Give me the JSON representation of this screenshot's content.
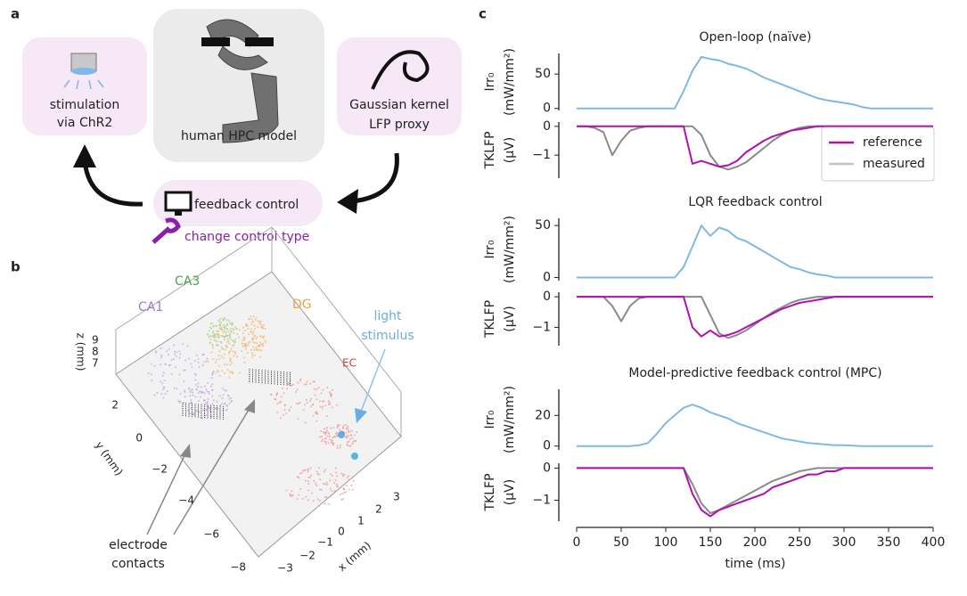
{
  "panel_a": {
    "label": "a",
    "stimulation": [
      "stimulation",
      "via ChR2"
    ],
    "model": "human HPC model",
    "proxy": [
      "Gaussian kernel",
      "LFP proxy"
    ],
    "feedback": "feedback control",
    "change": "change control type"
  },
  "panel_b": {
    "label": "b",
    "regions": [
      "CA1",
      "CA3",
      "DG",
      "EC"
    ],
    "light": [
      "light",
      "stimulus"
    ],
    "electrode": [
      "electrode",
      "contacts"
    ],
    "z_label": "z (mm)",
    "y_label": "y (mm)",
    "x_label": "x (mm)",
    "z_ticks": [
      "9",
      "8",
      "7"
    ],
    "y_ticks": [
      "2",
      "0",
      "−2",
      "−4",
      "−6",
      "−8"
    ],
    "x_ticks": [
      "−3",
      "−2",
      "−1",
      "0",
      "1",
      "2",
      "3"
    ]
  },
  "panel_c": {
    "label": "c"
  },
  "chart_data": [
    {
      "type": "line",
      "title": "Open-loop (naïve)",
      "y_label": [
        "Irr₀",
        "(mW/mm²)"
      ],
      "x": [
        0,
        10,
        20,
        30,
        40,
        50,
        60,
        70,
        80,
        90,
        100,
        110,
        120,
        130,
        140,
        150,
        160,
        170,
        180,
        190,
        200,
        210,
        220,
        230,
        240,
        250,
        260,
        270,
        280,
        290,
        300,
        310,
        320,
        330,
        340,
        350,
        360,
        370,
        380,
        390,
        400
      ],
      "xlim": [
        -2,
        403
      ],
      "ylim": [
        -3,
        80
      ],
      "yticks": [
        0,
        50
      ],
      "series": [
        {
          "color": "#7fb8e8",
          "values": [
            0,
            0,
            0,
            0,
            0,
            0,
            0,
            0,
            0,
            0,
            0,
            0,
            25,
            55,
            75,
            72,
            70,
            65,
            62,
            58,
            52,
            45,
            40,
            35,
            30,
            25,
            20,
            15,
            12,
            10,
            8,
            6,
            2,
            0,
            0,
            0,
            0,
            0,
            0,
            0,
            0
          ]
        }
      ]
    },
    {
      "type": "line",
      "y_label": [
        "TKLFP",
        "(μV)"
      ],
      "legend": "upper right",
      "x": [
        0,
        10,
        20,
        30,
        40,
        50,
        60,
        70,
        80,
        90,
        100,
        110,
        120,
        130,
        140,
        150,
        160,
        170,
        180,
        190,
        200,
        210,
        220,
        230,
        240,
        250,
        260,
        270,
        280,
        290,
        300,
        310,
        320,
        330,
        340,
        350,
        360,
        370,
        380,
        390,
        400
      ],
      "xlim": [
        -2,
        403
      ],
      "ylim": [
        -1.8,
        0.15
      ],
      "yticks": [
        {
          "value": -1,
          "label": "−1"
        },
        0
      ],
      "series": [
        {
          "name": "measured",
          "color": "#8a8a8a",
          "values": [
            0,
            0,
            -0.05,
            -0.2,
            -1.0,
            -0.5,
            -0.15,
            -0.05,
            0,
            0,
            0,
            0,
            0,
            0,
            -0.3,
            -1.0,
            -1.4,
            -1.5,
            -1.4,
            -1.25,
            -1.0,
            -0.75,
            -0.5,
            -0.3,
            -0.15,
            -0.05,
            0,
            0,
            0,
            0,
            0,
            0,
            0,
            0,
            0,
            0,
            0,
            0,
            0,
            0,
            0
          ]
        },
        {
          "name": "reference",
          "color": "#b010b0",
          "values": [
            0,
            0,
            0,
            0,
            0,
            0,
            0,
            0,
            0,
            0,
            0,
            0,
            0,
            -1.3,
            -1.2,
            -1.3,
            -1.4,
            -1.35,
            -1.2,
            -0.9,
            -0.7,
            -0.5,
            -0.35,
            -0.25,
            -0.15,
            -0.1,
            -0.05,
            0,
            0,
            0,
            0,
            0,
            0,
            0,
            0,
            0,
            0,
            0,
            0,
            0,
            0
          ]
        }
      ]
    },
    {
      "type": "line",
      "title": "LQR feedback control",
      "y_label": [
        "Irr₀",
        "(mW/mm²)"
      ],
      "x": [
        0,
        10,
        20,
        30,
        40,
        50,
        60,
        70,
        80,
        90,
        100,
        110,
        120,
        130,
        140,
        150,
        160,
        170,
        180,
        190,
        200,
        210,
        220,
        230,
        240,
        250,
        260,
        270,
        280,
        290,
        300,
        310,
        320,
        330,
        340,
        350,
        360,
        370,
        380,
        390,
        400
      ],
      "xlim": [
        -2,
        403
      ],
      "ylim": [
        -3,
        57
      ],
      "yticks": [
        0,
        50
      ],
      "series": [
        {
          "color": "#7fb8e8",
          "values": [
            0,
            0,
            0,
            0,
            0,
            0,
            0,
            0,
            0,
            0,
            0,
            0,
            10,
            30,
            50,
            40,
            48,
            45,
            38,
            35,
            30,
            25,
            20,
            15,
            10,
            8,
            5,
            3,
            2,
            0,
            0,
            0,
            0,
            0,
            0,
            0,
            0,
            0,
            0,
            0,
            0
          ]
        }
      ]
    },
    {
      "type": "line",
      "y_label": [
        "TKLFP",
        "(μV)"
      ],
      "x": [
        0,
        10,
        20,
        30,
        40,
        50,
        60,
        70,
        80,
        90,
        100,
        110,
        120,
        130,
        140,
        150,
        160,
        170,
        180,
        190,
        200,
        210,
        220,
        230,
        240,
        250,
        260,
        270,
        280,
        290,
        300,
        310,
        320,
        330,
        340,
        350,
        360,
        370,
        380,
        390,
        400
      ],
      "xlim": [
        -2,
        403
      ],
      "ylim": [
        -1.6,
        0.15
      ],
      "yticks": [
        {
          "value": -1,
          "label": "−1"
        },
        0
      ],
      "series": [
        {
          "color": "#8a8a8a",
          "values": [
            0,
            0,
            0,
            0,
            -0.3,
            -0.8,
            -0.3,
            -0.05,
            0,
            0,
            0,
            0,
            0,
            0,
            0,
            -0.6,
            -1.2,
            -1.35,
            -1.25,
            -1.1,
            -0.9,
            -0.7,
            -0.5,
            -0.35,
            -0.2,
            -0.1,
            -0.05,
            0,
            0,
            0,
            0,
            0,
            0,
            0,
            0,
            0,
            0,
            0,
            0,
            0,
            0
          ]
        },
        {
          "color": "#b010b0",
          "values": [
            0,
            0,
            0,
            0,
            0,
            0,
            0,
            0,
            0,
            0,
            0,
            0,
            0,
            -1.0,
            -1.3,
            -1.1,
            -1.3,
            -1.25,
            -1.15,
            -1.0,
            -0.85,
            -0.7,
            -0.55,
            -0.4,
            -0.3,
            -0.2,
            -0.15,
            -0.1,
            -0.05,
            0,
            0,
            0,
            0,
            0,
            0,
            0,
            0,
            0,
            0,
            0,
            0
          ]
        }
      ]
    },
    {
      "type": "line",
      "title": "Model-predictive feedback control (MPC)",
      "y_label": [
        "Irr₀",
        "(mW/mm²)"
      ],
      "x": [
        0,
        10,
        20,
        30,
        40,
        50,
        60,
        70,
        80,
        90,
        100,
        110,
        120,
        130,
        140,
        150,
        160,
        170,
        180,
        190,
        200,
        210,
        220,
        230,
        240,
        250,
        260,
        270,
        280,
        290,
        300,
        310,
        320,
        330,
        340,
        350,
        360,
        370,
        380,
        390,
        400
      ],
      "xlim": [
        -2,
        403
      ],
      "ylim": [
        -2.5,
        37
      ],
      "yticks": [
        0,
        20
      ],
      "series": [
        {
          "color": "#7fb8e8",
          "values": [
            0,
            0,
            0,
            0,
            0,
            0,
            0,
            0.5,
            2,
            8,
            15,
            20,
            25,
            27,
            25,
            22,
            20,
            18,
            15,
            13,
            11,
            9,
            7,
            5,
            4,
            3,
            2,
            1.5,
            1,
            0.5,
            0.5,
            0.3,
            0,
            0,
            0,
            0,
            0,
            0,
            0,
            0,
            0
          ]
        }
      ]
    },
    {
      "type": "line",
      "y_label": [
        "TKLFP",
        "(μV)"
      ],
      "x_label": "time (ms)",
      "x": [
        0,
        10,
        20,
        30,
        40,
        50,
        60,
        70,
        80,
        90,
        100,
        110,
        120,
        130,
        140,
        150,
        160,
        170,
        180,
        190,
        200,
        210,
        220,
        230,
        240,
        250,
        260,
        270,
        280,
        290,
        300,
        310,
        320,
        330,
        340,
        350,
        360,
        370,
        380,
        390,
        400
      ],
      "xlim": [
        -2,
        403
      ],
      "ylim": [
        -1.65,
        0.15
      ],
      "yticks": [
        {
          "value": -1,
          "label": "−1"
        },
        0
      ],
      "xticks": [
        0,
        50,
        100,
        150,
        200,
        250,
        300,
        350,
        400
      ],
      "series": [
        {
          "color": "#8a8a8a",
          "values": [
            0,
            0,
            0,
            0,
            0,
            0,
            0,
            0,
            0,
            0,
            0,
            0,
            0,
            -0.5,
            -1.1,
            -1.4,
            -1.3,
            -1.15,
            -1.0,
            -0.85,
            -0.7,
            -0.55,
            -0.4,
            -0.3,
            -0.2,
            -0.1,
            -0.05,
            0,
            0,
            0,
            0,
            0,
            0,
            0,
            0,
            0,
            0,
            0,
            0,
            0,
            0
          ]
        },
        {
          "color": "#b010b0",
          "values": [
            0,
            0,
            0,
            0,
            0,
            0,
            0,
            0,
            0,
            0,
            0,
            0,
            0,
            -0.8,
            -1.3,
            -1.5,
            -1.3,
            -1.2,
            -1.1,
            -1.0,
            -0.9,
            -0.8,
            -0.6,
            -0.5,
            -0.4,
            -0.3,
            -0.2,
            -0.2,
            -0.1,
            -0.1,
            0,
            0,
            0,
            0,
            0,
            0,
            0,
            0,
            0,
            0,
            0
          ]
        }
      ]
    }
  ]
}
